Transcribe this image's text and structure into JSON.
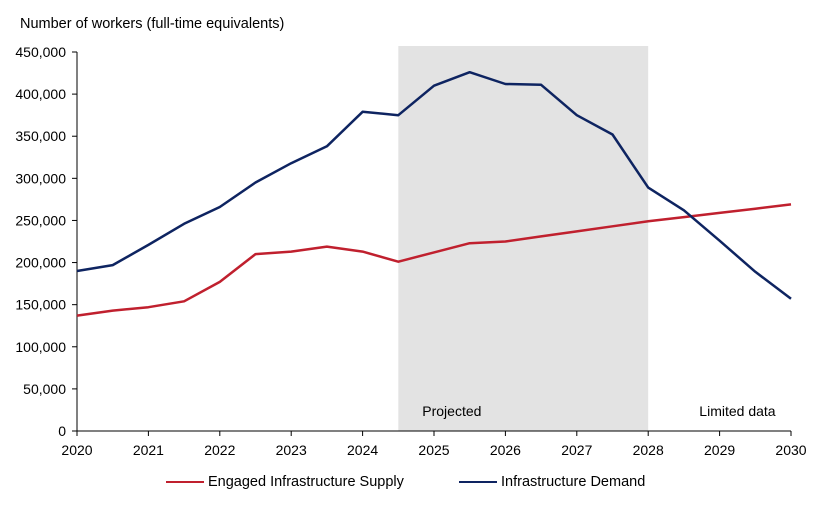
{
  "chart_data": {
    "type": "line",
    "ylabel": "Number of workers (full-time equivalents)",
    "ylim": [
      0,
      450000
    ],
    "yticks": [
      0,
      50000,
      100000,
      150000,
      200000,
      250000,
      300000,
      350000,
      400000,
      450000
    ],
    "ytick_labels": [
      "0",
      "50,000",
      "100,000",
      "150,000",
      "200,000",
      "250,000",
      "300,000",
      "350,000",
      "400,000",
      "450,000"
    ],
    "xlim": [
      2020,
      2030
    ],
    "xticks": [
      2020,
      2021,
      2022,
      2023,
      2024,
      2025,
      2026,
      2027,
      2028,
      2029,
      2030
    ],
    "xtick_labels": [
      "2020",
      "2021",
      "2022",
      "2023",
      "2024",
      "2025",
      "2026",
      "2027",
      "2028",
      "2029",
      "2030"
    ],
    "x": [
      2020,
      2020.5,
      2021,
      2021.5,
      2022,
      2022.5,
      2023,
      2023.5,
      2024,
      2024.5,
      2025,
      2025.5,
      2026,
      2026.5,
      2027,
      2027.5,
      2028,
      2028.5,
      2029,
      2029.5,
      2030
    ],
    "series": [
      {
        "name": "Engaged Infrastructure Supply",
        "color": "#c0202e",
        "values": [
          137000,
          143000,
          147000,
          154000,
          177000,
          210000,
          213000,
          219000,
          213000,
          201000,
          212000,
          223000,
          225000,
          231000,
          237000,
          243000,
          249000,
          254000,
          259000,
          264000,
          269000
        ]
      },
      {
        "name": "Infrastructure Demand",
        "color": "#0e2461",
        "values": [
          190000,
          197000,
          221000,
          246000,
          266000,
          295000,
          318000,
          338000,
          379000,
          375000,
          410000,
          426000,
          412000,
          411000,
          375000,
          352000,
          289000,
          262000,
          226000,
          189000,
          157000
        ]
      }
    ],
    "shaded_region": {
      "x_start": 2024.5,
      "x_end": 2028,
      "color": "#e3e3e3"
    },
    "annotations": [
      {
        "text": "Projected",
        "x": 2025.25,
        "y": 18000
      },
      {
        "text": "Limited data",
        "x": 2029.25,
        "y": 18000
      }
    ],
    "grid": false,
    "legend_position": "bottom"
  }
}
